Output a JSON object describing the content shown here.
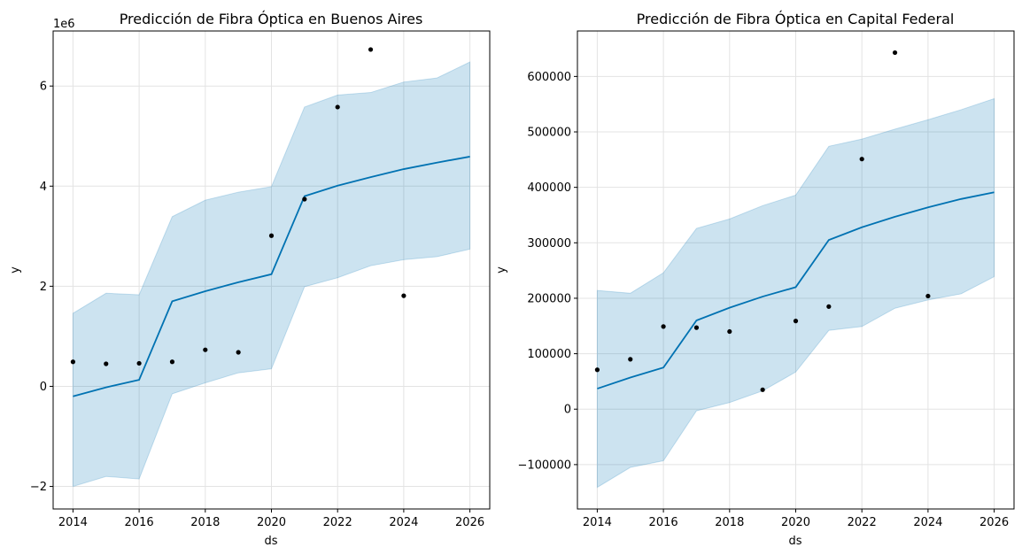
{
  "chart_data": [
    {
      "type": "line",
      "title": "Predicción de Fibra Óptica en Buenos Aires",
      "xlabel": "ds",
      "ylabel": "y",
      "y_offset_label": "1e6",
      "xlim": [
        2013.4,
        2026.6
      ],
      "ylim": [
        -2.45,
        7.1
      ],
      "xticks": [
        2014,
        2016,
        2018,
        2020,
        2022,
        2024,
        2026
      ],
      "xtick_labels": [
        "2014",
        "2016",
        "2018",
        "2020",
        "2022",
        "2024",
        "2026"
      ],
      "yticks": [
        -2,
        0,
        2,
        4,
        6
      ],
      "ytick_labels": [
        "−2",
        "0",
        "2",
        "4",
        "6"
      ],
      "grid": true,
      "series": [
        {
          "x": [
            2014,
            2015,
            2016,
            2017,
            2018,
            2019,
            2020,
            2021,
            2022,
            2023,
            2024,
            2025,
            2026
          ],
          "yhat": [
            -0.2,
            -0.02,
            0.13,
            1.7,
            1.9,
            2.08,
            2.24,
            3.8,
            4.01,
            4.18,
            4.34,
            4.47,
            4.59
          ],
          "yhat_lower": [
            -2.0,
            -1.8,
            -1.85,
            -0.15,
            0.07,
            0.27,
            0.35,
            1.99,
            2.17,
            2.41,
            2.53,
            2.59,
            2.74
          ],
          "yhat_upper": [
            1.46,
            1.86,
            1.83,
            3.39,
            3.72,
            3.88,
            3.99,
            5.58,
            5.82,
            5.87,
            6.08,
            6.16,
            6.48
          ]
        }
      ],
      "points": {
        "x": [
          2014,
          2015,
          2016,
          2017,
          2018,
          2019,
          2020,
          2021,
          2022,
          2023,
          2024
        ],
        "y": [
          0.49,
          0.45,
          0.46,
          0.49,
          0.73,
          0.68,
          3.01,
          3.74,
          5.58,
          6.73,
          1.81
        ]
      },
      "colors": {
        "line": "#0072b2",
        "band": "#0072b2",
        "points": "#000000"
      }
    },
    {
      "type": "line",
      "title": "Predicción de Fibra Óptica en Capital Federal",
      "xlabel": "ds",
      "ylabel": "y",
      "y_offset_label": "",
      "xlim": [
        2013.4,
        2026.6
      ],
      "ylim": [
        -180000,
        682000
      ],
      "xticks": [
        2014,
        2016,
        2018,
        2020,
        2022,
        2024,
        2026
      ],
      "xtick_labels": [
        "2014",
        "2016",
        "2018",
        "2020",
        "2022",
        "2024",
        "2026"
      ],
      "yticks": [
        -100000,
        0,
        100000,
        200000,
        300000,
        400000,
        500000,
        600000
      ],
      "ytick_labels": [
        "−100000",
        "0",
        "100000",
        "200000",
        "300000",
        "400000",
        "500000",
        "600000"
      ],
      "grid": true,
      "series": [
        {
          "x": [
            2014,
            2015,
            2016,
            2017,
            2018,
            2019,
            2020,
            2021,
            2022,
            2023,
            2024,
            2025,
            2026
          ],
          "yhat": [
            37000,
            57000,
            75000,
            160000,
            183000,
            203000,
            220000,
            305000,
            328000,
            347000,
            364000,
            379000,
            391000
          ],
          "yhat_lower": [
            -141000,
            -105000,
            -93000,
            -3000,
            12000,
            33000,
            67000,
            142000,
            149000,
            182000,
            197000,
            208000,
            239000
          ],
          "yhat_upper": [
            214000,
            209000,
            246000,
            326000,
            343000,
            367000,
            386000,
            474000,
            487000,
            505000,
            522000,
            540000,
            560000
          ]
        }
      ],
      "points": {
        "x": [
          2014,
          2015,
          2016,
          2017,
          2018,
          2019,
          2020,
          2021,
          2022,
          2023,
          2024
        ],
        "y": [
          71000,
          90000,
          149000,
          147000,
          140000,
          35000,
          159000,
          185000,
          451000,
          643000,
          204000
        ]
      },
      "colors": {
        "line": "#0072b2",
        "band": "#0072b2",
        "points": "#000000"
      }
    }
  ]
}
